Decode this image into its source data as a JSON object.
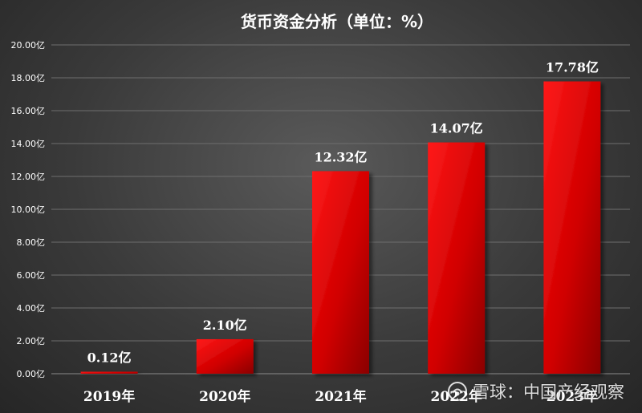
{
  "chart_data": {
    "type": "bar",
    "title": "货币资金分析（单位：%）",
    "categories": [
      "2019年",
      "2020年",
      "2021年",
      "2022年",
      "2023年"
    ],
    "values": [
      0.12,
      2.1,
      12.32,
      14.07,
      17.78
    ],
    "data_labels": [
      "0.12亿",
      "2.10亿",
      "12.32亿",
      "14.07亿",
      "17.78亿"
    ],
    "ylim": [
      0,
      20
    ],
    "yticks": [
      "0.00亿",
      "2.00亿",
      "4.00亿",
      "6.00亿",
      "8.00亿",
      "10.00亿",
      "12.00亿",
      "14.00亿",
      "16.00亿",
      "18.00亿",
      "20.00亿"
    ],
    "grid": true,
    "bar_color": "#e00000"
  },
  "watermark": {
    "text": "雪球：中国产经观察",
    "icon": "snowball-logo-icon"
  }
}
